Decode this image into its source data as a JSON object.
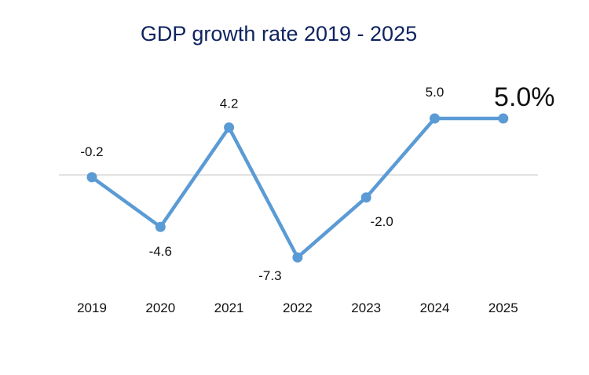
{
  "chart_data": {
    "type": "line",
    "title": "GDP growth rate 2019 - 2025",
    "xlabel": "",
    "ylabel": "",
    "categories": [
      "2019",
      "2020",
      "2021",
      "2022",
      "2023",
      "2024",
      "2025"
    ],
    "values": [
      -0.2,
      -4.6,
      4.2,
      -7.3,
      -2.0,
      5.0,
      5.0
    ],
    "data_labels": [
      "-0.2",
      "-4.6",
      "4.2",
      "-7.3",
      "-2.0",
      "5.0",
      "5.0%"
    ],
    "ylim": [
      -10,
      8
    ],
    "grid": false,
    "zero_line": true,
    "legend": "none",
    "colors": {
      "line": "#5b9bd5",
      "title": "#0f2360",
      "zero_line": "#d9d9d9"
    }
  }
}
